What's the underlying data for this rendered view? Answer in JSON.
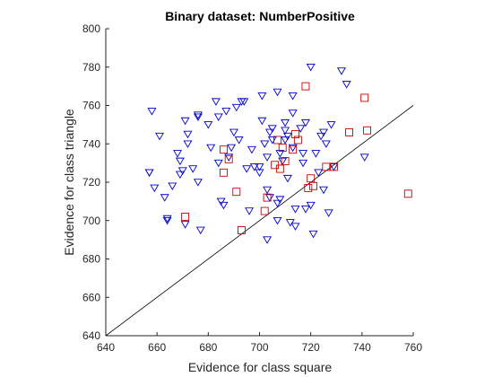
{
  "chart_data": {
    "type": "scatter",
    "title": "Binary dataset: NumberPositive",
    "xlabel": "Evidence for class square",
    "ylabel": "Evidence for class triangle",
    "xlim": [
      640,
      760
    ],
    "ylim": [
      640,
      800
    ],
    "xticks": [
      640,
      660,
      680,
      700,
      720,
      740,
      760
    ],
    "yticks": [
      640,
      660,
      680,
      700,
      720,
      740,
      760,
      780,
      800
    ],
    "grid": false,
    "legend": "none",
    "diagonal_line": {
      "from": [
        640,
        640
      ],
      "to": [
        760,
        760
      ],
      "color": "#000000"
    },
    "series": [
      {
        "marker": "triangle-down",
        "color": "#0000cc",
        "points": [
          [
            658,
            757
          ],
          [
            661,
            744
          ],
          [
            657,
            725
          ],
          [
            659,
            717
          ],
          [
            663,
            712
          ],
          [
            664,
            700
          ],
          [
            664,
            701
          ],
          [
            666,
            718
          ],
          [
            668,
            735
          ],
          [
            669,
            731
          ],
          [
            669,
            724
          ],
          [
            670,
            726
          ],
          [
            671,
            752
          ],
          [
            672,
            745
          ],
          [
            672,
            740
          ],
          [
            671,
            698
          ],
          [
            674,
            727
          ],
          [
            676,
            754
          ],
          [
            676,
            720
          ],
          [
            677,
            695
          ],
          [
            680,
            750
          ],
          [
            681,
            738
          ],
          [
            683,
            762
          ],
          [
            684,
            730
          ],
          [
            684,
            754
          ],
          [
            685,
            710
          ],
          [
            686,
            708
          ],
          [
            687,
            757
          ],
          [
            688,
            733
          ],
          [
            689,
            738
          ],
          [
            690,
            746
          ],
          [
            691,
            759
          ],
          [
            692,
            742
          ],
          [
            694,
            762
          ],
          [
            695,
            727
          ],
          [
            696,
            705
          ],
          [
            697,
            737
          ],
          [
            698,
            728
          ],
          [
            700,
            725
          ],
          [
            700,
            728
          ],
          [
            701,
            765
          ],
          [
            701,
            752
          ],
          [
            702,
            740
          ],
          [
            703,
            733
          ],
          [
            703,
            716
          ],
          [
            703,
            690
          ],
          [
            704,
            746
          ],
          [
            705,
            748
          ],
          [
            705,
            742
          ],
          [
            707,
            709
          ],
          [
            707,
            700
          ],
          [
            707,
            767
          ],
          [
            708,
            735
          ],
          [
            708,
            711
          ],
          [
            709,
            731
          ],
          [
            710,
            742
          ],
          [
            710,
            751
          ],
          [
            710,
            747
          ],
          [
            711,
            744
          ],
          [
            711,
            722
          ],
          [
            712,
            699
          ],
          [
            713,
            738
          ],
          [
            713,
            765
          ],
          [
            713,
            756
          ],
          [
            714,
            706
          ],
          [
            714,
            697
          ],
          [
            716,
            748
          ],
          [
            717,
            735
          ],
          [
            717,
            730
          ],
          [
            718,
            751
          ],
          [
            718,
            706
          ],
          [
            720,
            780
          ],
          [
            720,
            708
          ],
          [
            721,
            693
          ],
          [
            722,
            735
          ],
          [
            723,
            725
          ],
          [
            724,
            744
          ],
          [
            725,
            716
          ],
          [
            725,
            746
          ],
          [
            726,
            740
          ],
          [
            727,
            704
          ],
          [
            728,
            750
          ],
          [
            729,
            728
          ],
          [
            732,
            778
          ],
          [
            734,
            771
          ],
          [
            741,
            733
          ],
          [
            657,
            725
          ],
          [
            676,
            755
          ],
          [
            693,
            762
          ],
          [
            704,
            712
          ]
        ]
      },
      {
        "marker": "square",
        "color": "#cc0000",
        "points": [
          [
            671,
            702
          ],
          [
            686,
            737
          ],
          [
            686,
            725
          ],
          [
            688,
            732
          ],
          [
            691,
            715
          ],
          [
            693,
            695
          ],
          [
            702,
            705
          ],
          [
            703,
            712
          ],
          [
            706,
            729
          ],
          [
            707,
            742
          ],
          [
            708,
            727
          ],
          [
            709,
            738
          ],
          [
            710,
            731
          ],
          [
            713,
            737
          ],
          [
            714,
            745
          ],
          [
            715,
            742
          ],
          [
            718,
            770
          ],
          [
            719,
            717
          ],
          [
            720,
            722
          ],
          [
            721,
            718
          ],
          [
            726,
            728
          ],
          [
            729,
            728
          ],
          [
            735,
            746
          ],
          [
            741,
            764
          ],
          [
            742,
            747
          ],
          [
            758,
            714
          ]
        ]
      }
    ]
  }
}
